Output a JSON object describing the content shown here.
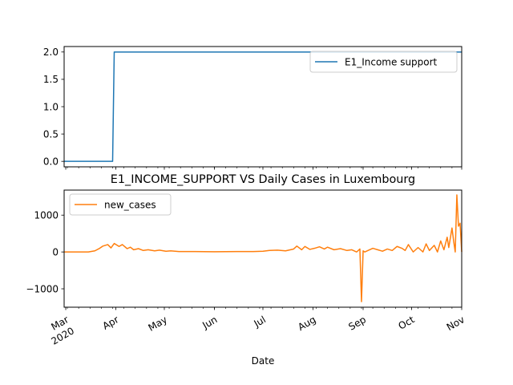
{
  "chart_data": [
    {
      "type": "line",
      "title": "",
      "xlabel": "",
      "ylabel": "",
      "x_range": [
        "2020-02-29",
        "2020-11-01"
      ],
      "ylim": [
        -0.1,
        2.1
      ],
      "yticks": [
        0.0,
        0.5,
        1.0,
        1.5,
        2.0
      ],
      "ytick_labels": [
        "0.0",
        "0.5",
        "1.0",
        "1.5",
        "2.0"
      ],
      "legend_placement": "top-right",
      "grid": false,
      "series": [
        {
          "name": "E1_Income support",
          "color": "#1f77b4",
          "step": true,
          "x": [
            "2020-02-29",
            "2020-03-30",
            "2020-03-31",
            "2020-11-01"
          ],
          "values": [
            0,
            0,
            2,
            2
          ]
        }
      ]
    },
    {
      "type": "line",
      "title": "E1_INCOME_SUPPORT VS Daily Cases in Luxembourg",
      "xlabel": "Date",
      "ylabel": "",
      "x_range": [
        "2020-02-29",
        "2020-11-01"
      ],
      "ylim": [
        -1500,
        1680
      ],
      "yticks": [
        -1000,
        0,
        1000
      ],
      "ytick_labels": [
        "−1000",
        "0",
        "1000"
      ],
      "legend_placement": "top-left",
      "grid": false,
      "x_major_ticks": [
        {
          "date": "2020-03-01",
          "label": "Mar",
          "sublabel": "2020"
        },
        {
          "date": "2020-04-01",
          "label": "Apr"
        },
        {
          "date": "2020-05-01",
          "label": "May"
        },
        {
          "date": "2020-06-01",
          "label": "Jun"
        },
        {
          "date": "2020-07-01",
          "label": "Jul"
        },
        {
          "date": "2020-08-01",
          "label": "Aug"
        },
        {
          "date": "2020-09-01",
          "label": "Sep"
        },
        {
          "date": "2020-10-01",
          "label": "Oct"
        },
        {
          "date": "2020-11-01",
          "label": "Nov"
        }
      ],
      "series": [
        {
          "name": "new_cases",
          "color": "#ff7f0e",
          "x": [
            "2020-02-29",
            "2020-03-15",
            "2020-03-19",
            "2020-03-22",
            "2020-03-24",
            "2020-03-27",
            "2020-03-29",
            "2020-03-31",
            "2020-04-03",
            "2020-04-05",
            "2020-04-08",
            "2020-04-10",
            "2020-04-12",
            "2020-04-15",
            "2020-04-18",
            "2020-04-21",
            "2020-04-25",
            "2020-04-28",
            "2020-05-02",
            "2020-05-05",
            "2020-05-10",
            "2020-05-20",
            "2020-06-01",
            "2020-06-15",
            "2020-06-25",
            "2020-07-01",
            "2020-07-05",
            "2020-07-10",
            "2020-07-15",
            "2020-07-20",
            "2020-07-22",
            "2020-07-25",
            "2020-07-27",
            "2020-07-30",
            "2020-08-02",
            "2020-08-05",
            "2020-08-08",
            "2020-08-10",
            "2020-08-14",
            "2020-08-18",
            "2020-08-22",
            "2020-08-25",
            "2020-08-28",
            "2020-08-30",
            "2020-08-31",
            "2020-09-01",
            "2020-09-02",
            "2020-09-04",
            "2020-09-07",
            "2020-09-10",
            "2020-09-13",
            "2020-09-16",
            "2020-09-19",
            "2020-09-22",
            "2020-09-25",
            "2020-09-27",
            "2020-09-29",
            "2020-10-02",
            "2020-10-05",
            "2020-10-08",
            "2020-10-10",
            "2020-10-12",
            "2020-10-15",
            "2020-10-17",
            "2020-10-19",
            "2020-10-21",
            "2020-10-23",
            "2020-10-24",
            "2020-10-26",
            "2020-10-27",
            "2020-10-28",
            "2020-10-29",
            "2020-10-30",
            "2020-10-31",
            "2020-11-01"
          ],
          "values": [
            0,
            0,
            30,
            100,
            160,
            200,
            110,
            230,
            150,
            200,
            90,
            130,
            60,
            90,
            40,
            60,
            30,
            50,
            20,
            30,
            10,
            10,
            5,
            10,
            10,
            20,
            40,
            50,
            30,
            80,
            160,
            60,
            150,
            70,
            100,
            140,
            80,
            130,
            60,
            90,
            40,
            60,
            0,
            80,
            -1350,
            30,
            0,
            40,
            100,
            60,
            20,
            80,
            40,
            150,
            100,
            40,
            200,
            0,
            120,
            0,
            220,
            40,
            180,
            0,
            300,
            60,
            400,
            120,
            650,
            300,
            0,
            1550,
            700,
            780,
            0
          ]
        }
      ]
    }
  ]
}
